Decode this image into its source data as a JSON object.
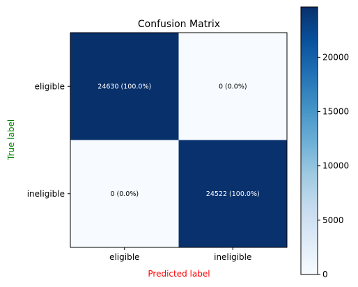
{
  "chart_data": {
    "type": "heatmap",
    "title": "Confusion Matrix",
    "xlabel": "Predicted label",
    "ylabel": "True label",
    "xlabel_color": "#ff0000",
    "ylabel_color": "#008000",
    "x_categories": [
      "eligible",
      "ineligible"
    ],
    "y_categories": [
      "eligible",
      "ineligible"
    ],
    "values": [
      [
        24630,
        0
      ],
      [
        0,
        24522
      ]
    ],
    "cell_labels": [
      [
        "24630 (100.0%)",
        "0 (0.0%)"
      ],
      [
        "0 (0.0%)",
        "24522 (100.0%)"
      ]
    ],
    "colormap": "Blues",
    "colorbar": {
      "range": [
        0,
        24630
      ],
      "ticks": [
        0,
        5000,
        10000,
        15000,
        20000
      ],
      "tick_labels": [
        "0",
        "5000",
        "10000",
        "15000",
        "20000"
      ]
    },
    "colors": {
      "low": "#f7fbff",
      "high": "#08306b"
    }
  }
}
